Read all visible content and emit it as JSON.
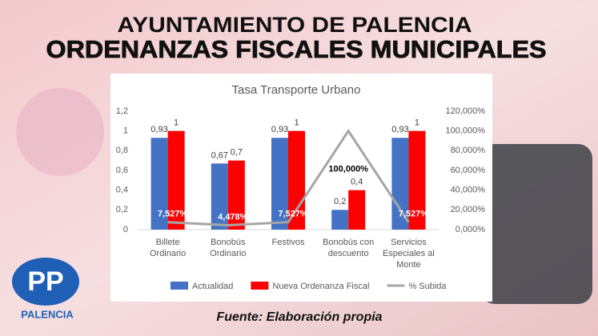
{
  "header": {
    "title": "AYUNTAMIENTO DE PALENCIA",
    "subtitle": "ORDENANZAS FISCALES MUNICIPALES"
  },
  "footer": {
    "source": "Fuente: Elaboración propia"
  },
  "logo": {
    "mark": "PP",
    "text": "PALENCIA"
  },
  "chart_data": {
    "type": "bar",
    "title": "Tasa Transporte Urbano",
    "categories": [
      "Billete Ordinario",
      "Bonobús Ordinario",
      "Festivos",
      "Bonobús con descuento",
      "Servicios Especiales al Monte"
    ],
    "series": [
      {
        "name": "Actualidad",
        "color": "#4472c4",
        "values": [
          0.93,
          0.67,
          0.93,
          0.2,
          0.93
        ],
        "value_labels": [
          "0,93",
          "0,67",
          "0,93",
          "0,2",
          "0,93"
        ]
      },
      {
        "name": "Nueva Ordenanza Fiscal",
        "color": "#ff0000",
        "values": [
          1,
          0.7,
          1,
          0.4,
          1
        ],
        "value_labels": [
          "1",
          "0,7",
          "1",
          "0,4",
          "1"
        ]
      },
      {
        "name": "% Subida",
        "type": "line",
        "axis": "y2",
        "color": "#a5a5a5",
        "values": [
          7.527,
          4.478,
          7.527,
          100,
          7.527
        ],
        "value_labels": [
          "7,527%",
          "4,478%",
          "7,527%",
          "100,000%",
          "7,527%"
        ]
      }
    ],
    "ylim": [
      0,
      1.2
    ],
    "yticks": [
      0,
      {
        "value": 0.2,
        "label": "0,2"
      },
      {
        "value": 0.4,
        "label": "0,4"
      },
      {
        "value": 0.6,
        "label": "0,6"
      },
      {
        "value": 0.8,
        "label": "0,8"
      },
      1,
      {
        "value": 1.2,
        "label": "1,2"
      }
    ],
    "y2lim": [
      0,
      120
    ],
    "y2ticks": [
      {
        "value": 0,
        "label": "0,000%"
      },
      {
        "value": 20,
        "label": "20,000%"
      },
      {
        "value": 40,
        "label": "40,000%"
      },
      {
        "value": 60,
        "label": "60,000%"
      },
      {
        "value": 80,
        "label": "80,000%"
      },
      {
        "value": 100,
        "label": "100,000%"
      },
      {
        "value": 120,
        "label": "120,000%"
      }
    ],
    "grid": false,
    "legend": "bottom"
  }
}
